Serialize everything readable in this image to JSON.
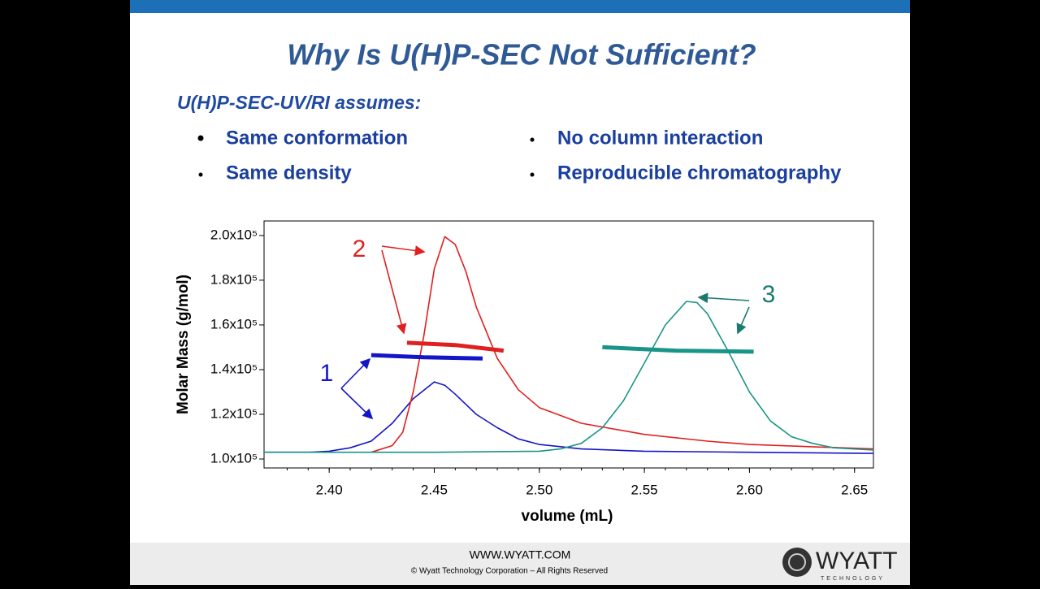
{
  "slide": {
    "title": "Why Is U(H)P-SEC Not Sufficient?",
    "subtitle": "U(H)P-SEC-UV/RI assumes:",
    "bullets": [
      [
        "Same conformation",
        "Same density"
      ],
      [
        "No column interaction",
        "Reproducible chromatography"
      ]
    ],
    "footer": {
      "url": "WWW.WYATT.COM",
      "copyright": "© Wyatt Technology Corporation – All Rights Reserved",
      "logo": "WYATT",
      "logo_sub": "TECHNOLOGY"
    }
  },
  "chart_data": {
    "type": "line",
    "x_label": "volume (mL)",
    "y_label": "Molar Mass (g/mol)",
    "xlim": [
      2.369,
      2.659
    ],
    "xticks": [
      {
        "value": 2.4,
        "label": "2.40"
      },
      2.45,
      {
        "value": 2.5,
        "label": "2.50"
      },
      2.55,
      {
        "value": 2.6,
        "label": "2.60"
      },
      2.65
    ],
    "ylim": [
      96000,
      206500
    ],
    "yticks": [
      {
        "value": 100000,
        "label": "1.0x10⁵"
      },
      {
        "value": 120000,
        "label": "1.2x10⁵"
      },
      {
        "value": 140000,
        "label": "1.4x10⁵"
      },
      {
        "value": 160000,
        "label": "1.6x10⁵"
      },
      {
        "value": 180000,
        "label": "1.8x10⁵"
      },
      {
        "value": 200000,
        "label": "2.0x10⁵"
      }
    ],
    "series": [
      {
        "color": "#1515c8",
        "width": 1.6,
        "x": [
          2.369,
          2.39,
          2.4,
          2.41,
          2.42,
          2.43,
          2.44,
          2.45,
          2.455,
          2.46,
          2.47,
          2.48,
          2.49,
          2.5,
          2.52,
          2.55,
          2.6,
          2.659
        ],
        "values": [
          103000,
          103000,
          103500,
          105000,
          108000,
          116000,
          127000,
          134500,
          133000,
          129000,
          120000,
          114000,
          109000,
          106500,
          104500,
          103500,
          103000,
          102500
        ]
      },
      {
        "color": "#e02020",
        "width": 1.6,
        "x": [
          2.42,
          2.43,
          2.435,
          2.44,
          2.445,
          2.45,
          2.455,
          2.46,
          2.465,
          2.47,
          2.48,
          2.49,
          2.5,
          2.52,
          2.55,
          2.58,
          2.6,
          2.63,
          2.659
        ],
        "values": [
          103000,
          106000,
          112000,
          130000,
          155000,
          185000,
          199500,
          196000,
          184000,
          168000,
          145000,
          131000,
          123000,
          116000,
          111000,
          108000,
          106500,
          105500,
          104500
        ]
      },
      {
        "color": "#1a9488",
        "width": 1.6,
        "x": [
          2.369,
          2.45,
          2.5,
          2.51,
          2.52,
          2.53,
          2.54,
          2.55,
          2.56,
          2.57,
          2.575,
          2.58,
          2.59,
          2.6,
          2.61,
          2.62,
          2.63,
          2.64,
          2.659
        ],
        "values": [
          103000,
          103000,
          103500,
          104500,
          107000,
          114000,
          126000,
          143000,
          160000,
          170500,
          170000,
          165000,
          148000,
          130000,
          117000,
          110000,
          107000,
          105000,
          104000
        ]
      },
      {
        "color": "#1515c8",
        "width": 5,
        "x": [
          2.42,
          2.445,
          2.473
        ],
        "values": [
          146500,
          145500,
          145000
        ]
      },
      {
        "color": "#e02020",
        "width": 5,
        "x": [
          2.437,
          2.46,
          2.483
        ],
        "values": [
          152000,
          151000,
          148500
        ]
      },
      {
        "color": "#1a9488",
        "width": 5,
        "x": [
          2.53,
          2.565,
          2.602
        ],
        "values": [
          150000,
          148500,
          148000
        ]
      }
    ],
    "annotations": [
      {
        "text": "1",
        "color": "#1515c8"
      },
      {
        "text": "2",
        "color": "#e02020"
      },
      {
        "text": "3",
        "color": "#1a7a70"
      }
    ]
  }
}
